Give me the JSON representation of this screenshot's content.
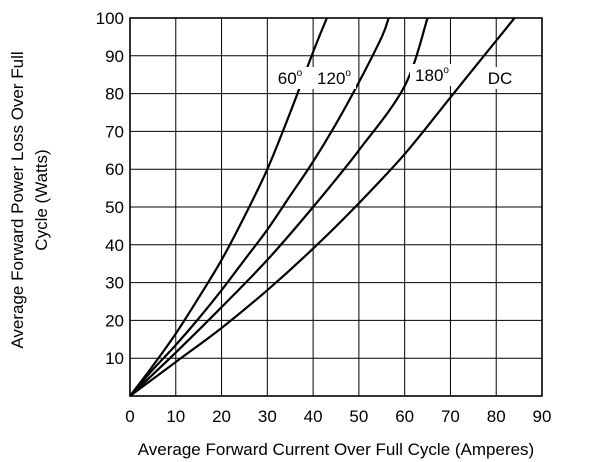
{
  "chart_data": {
    "type": "line",
    "title": "",
    "xlabel": "Average Forward Current Over Full Cycle (Amperes)",
    "ylabel_lines": [
      "Average Forward Power Loss Over Full",
      "Cycle (Watts)"
    ],
    "xlim": [
      0,
      90
    ],
    "ylim": [
      0,
      100
    ],
    "x_ticks": [
      "0",
      "10",
      "20",
      "30",
      "40",
      "50",
      "60",
      "70",
      "80",
      "90"
    ],
    "y_ticks": [
      "10",
      "20",
      "30",
      "40",
      "50",
      "60",
      "70",
      "80",
      "90",
      "100"
    ],
    "grid": true,
    "series": [
      {
        "name": "60",
        "name_suffix": "o",
        "x": [
          0,
          5,
          10,
          15,
          20,
          25,
          30,
          35,
          40,
          43
        ],
        "y": [
          0,
          8,
          16.5,
          26,
          36,
          47.5,
          60,
          75,
          91,
          100
        ]
      },
      {
        "name": "120",
        "name_suffix": "o",
        "x": [
          0,
          5,
          10,
          15,
          20,
          25,
          30,
          35,
          40,
          45,
          50,
          55,
          56.5
        ],
        "y": [
          0,
          7,
          13.5,
          20.5,
          28,
          36,
          44,
          53,
          62,
          72,
          83,
          95,
          100
        ]
      },
      {
        "name": "180",
        "name_suffix": "o",
        "x": [
          0,
          10,
          20,
          30,
          40,
          50,
          60,
          65
        ],
        "y": [
          0,
          11.5,
          23.5,
          36,
          50,
          65,
          82,
          100
        ]
      },
      {
        "name": "DC",
        "x": [
          0,
          10,
          20,
          30,
          40,
          50,
          60,
          70,
          80,
          84
        ],
        "y": [
          0,
          9,
          18,
          28,
          39,
          51,
          64,
          79,
          94,
          100
        ]
      }
    ]
  }
}
